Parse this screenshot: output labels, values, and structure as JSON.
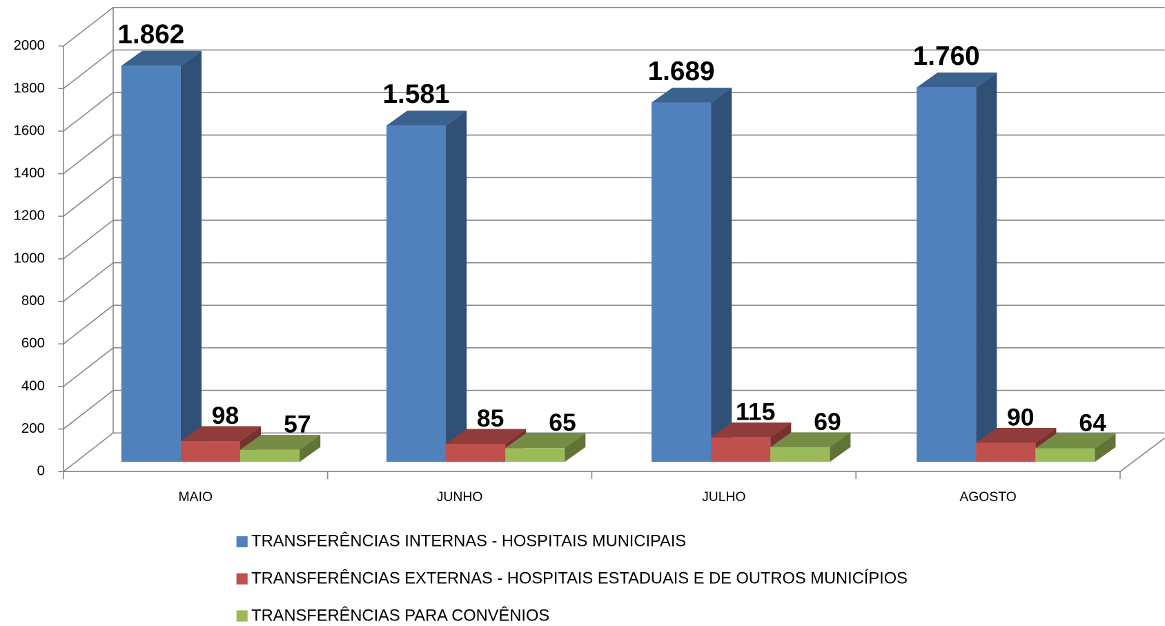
{
  "chart_data": {
    "type": "bar3d",
    "categories": [
      "MAIO",
      "JUNHO",
      "JULHO",
      "AGOSTO"
    ],
    "series": [
      {
        "name": "TRANSFERÊNCIAS INTERNAS - HOSPITAIS MUNICIPAIS",
        "color": "#4f81bd",
        "values": [
          1862,
          1581,
          1689,
          1760
        ],
        "value_labels": [
          "1.862",
          "1.581",
          "1.689",
          "1.760"
        ]
      },
      {
        "name": "TRANSFERÊNCIAS EXTERNAS - HOSPITAIS ESTADUAIS E DE OUTROS MUNICÍPIOS",
        "color": "#c0504d",
        "values": [
          98,
          85,
          115,
          90
        ]
      },
      {
        "name": "TRANSFERÊNCIAS PARA CONVÊNIOS",
        "color": "#9bbb59",
        "values": [
          57,
          65,
          69,
          64
        ]
      }
    ],
    "ylim": [
      0,
      2000
    ],
    "yticks": [
      0,
      200,
      400,
      600,
      800,
      1000,
      1200,
      1400,
      1600,
      1800,
      2000
    ],
    "grid": true,
    "legend": "bottom"
  }
}
